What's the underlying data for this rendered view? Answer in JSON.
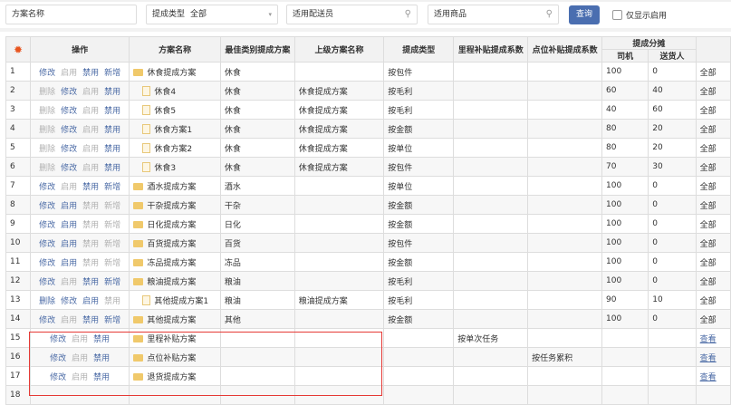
{
  "filters": {
    "name_placeholder": "方案名称",
    "type_label": "提成类型",
    "type_value": "全部",
    "courier_placeholder": "适用配送员",
    "goods_placeholder": "适用商品",
    "query_button": "查询",
    "only_enabled_label": "仅显示启用",
    "only_enabled_checked": false
  },
  "colors": {
    "accent": "#4a6eb0",
    "link": "#4a6aa5",
    "disabled": "#b0b0b0",
    "highlight": "#e53935"
  },
  "table": {
    "headers": {
      "ops": "操作",
      "name": "方案名称",
      "category": "最佳类别提成方案",
      "parent": "上级方案名称",
      "type": "提成类型",
      "mileage": "里程补贴提成系数",
      "point": "点位补贴提成系数",
      "split": "提成分摊",
      "driver": "司机",
      "deliverer": "送货人",
      "settings_icon": "gear-icon"
    },
    "rows": [
      {
        "no": "1",
        "actions": [
          [
            "修改",
            1
          ],
          [
            "启用",
            0
          ],
          [
            "禁用",
            1
          ],
          [
            "新增",
            1
          ]
        ],
        "icon": "folder",
        "name": "休食提成方案",
        "category": "休食",
        "parent": "",
        "type": "按包件",
        "mileage": "",
        "point": "",
        "driver": "100",
        "deliverer": "0",
        "last": "全部"
      },
      {
        "no": "2",
        "actions": [
          [
            "删除",
            0
          ],
          [
            "修改",
            1
          ],
          [
            "启用",
            0
          ],
          [
            "禁用",
            1
          ]
        ],
        "icon": "file",
        "name": "休食4",
        "category": "休食",
        "parent": "休食提成方案",
        "type": "按毛利",
        "mileage": "",
        "point": "",
        "driver": "60",
        "deliverer": "40",
        "last": "全部"
      },
      {
        "no": "3",
        "actions": [
          [
            "删除",
            0
          ],
          [
            "修改",
            1
          ],
          [
            "启用",
            0
          ],
          [
            "禁用",
            1
          ]
        ],
        "icon": "file",
        "name": "休食5",
        "category": "休食",
        "parent": "休食提成方案",
        "type": "按毛利",
        "mileage": "",
        "point": "",
        "driver": "40",
        "deliverer": "60",
        "last": "全部"
      },
      {
        "no": "4",
        "actions": [
          [
            "删除",
            0
          ],
          [
            "修改",
            1
          ],
          [
            "启用",
            0
          ],
          [
            "禁用",
            1
          ]
        ],
        "icon": "file",
        "name": "休食方案1",
        "category": "休食",
        "parent": "休食提成方案",
        "type": "按金额",
        "mileage": "",
        "point": "",
        "driver": "80",
        "deliverer": "20",
        "last": "全部"
      },
      {
        "no": "5",
        "actions": [
          [
            "删除",
            0
          ],
          [
            "修改",
            1
          ],
          [
            "启用",
            0
          ],
          [
            "禁用",
            1
          ]
        ],
        "icon": "file",
        "name": "休食方案2",
        "category": "休食",
        "parent": "休食提成方案",
        "type": "按单位",
        "mileage": "",
        "point": "",
        "driver": "80",
        "deliverer": "20",
        "last": "全部"
      },
      {
        "no": "6",
        "actions": [
          [
            "删除",
            0
          ],
          [
            "修改",
            1
          ],
          [
            "启用",
            0
          ],
          [
            "禁用",
            1
          ]
        ],
        "icon": "file",
        "name": "休食3",
        "category": "休食",
        "parent": "休食提成方案",
        "type": "按包件",
        "mileage": "",
        "point": "",
        "driver": "70",
        "deliverer": "30",
        "last": "全部"
      },
      {
        "no": "7",
        "actions": [
          [
            "修改",
            1
          ],
          [
            "启用",
            0
          ],
          [
            "禁用",
            1
          ],
          [
            "新增",
            1
          ]
        ],
        "icon": "folder",
        "name": "酒水提成方案",
        "category": "酒水",
        "parent": "",
        "type": "按单位",
        "mileage": "",
        "point": "",
        "driver": "100",
        "deliverer": "0",
        "last": "全部"
      },
      {
        "no": "8",
        "actions": [
          [
            "修改",
            1
          ],
          [
            "启用",
            1
          ],
          [
            "禁用",
            0
          ],
          [
            "新增",
            0
          ]
        ],
        "icon": "folder",
        "name": "干杂提成方案",
        "category": "干杂",
        "parent": "",
        "type": "按金额",
        "mileage": "",
        "point": "",
        "driver": "100",
        "deliverer": "0",
        "last": "全部"
      },
      {
        "no": "9",
        "actions": [
          [
            "修改",
            1
          ],
          [
            "启用",
            1
          ],
          [
            "禁用",
            0
          ],
          [
            "新增",
            0
          ]
        ],
        "icon": "folder",
        "name": "日化提成方案",
        "category": "日化",
        "parent": "",
        "type": "按金额",
        "mileage": "",
        "point": "",
        "driver": "100",
        "deliverer": "0",
        "last": "全部"
      },
      {
        "no": "10",
        "actions": [
          [
            "修改",
            1
          ],
          [
            "启用",
            1
          ],
          [
            "禁用",
            0
          ],
          [
            "新增",
            0
          ]
        ],
        "icon": "folder",
        "name": "百货提成方案",
        "category": "百货",
        "parent": "",
        "type": "按包件",
        "mileage": "",
        "point": "",
        "driver": "100",
        "deliverer": "0",
        "last": "全部"
      },
      {
        "no": "11",
        "actions": [
          [
            "修改",
            1
          ],
          [
            "启用",
            1
          ],
          [
            "禁用",
            0
          ],
          [
            "新增",
            0
          ]
        ],
        "icon": "folder",
        "name": "冻品提成方案",
        "category": "冻品",
        "parent": "",
        "type": "按金额",
        "mileage": "",
        "point": "",
        "driver": "100",
        "deliverer": "0",
        "last": "全部"
      },
      {
        "no": "12",
        "actions": [
          [
            "修改",
            1
          ],
          [
            "启用",
            0
          ],
          [
            "禁用",
            1
          ],
          [
            "新增",
            1
          ]
        ],
        "icon": "folder",
        "name": "粮油提成方案",
        "category": "粮油",
        "parent": "",
        "type": "按毛利",
        "mileage": "",
        "point": "",
        "driver": "100",
        "deliverer": "0",
        "last": "全部"
      },
      {
        "no": "13",
        "actions": [
          [
            "删除",
            1
          ],
          [
            "修改",
            1
          ],
          [
            "启用",
            1
          ],
          [
            "禁用",
            0
          ]
        ],
        "icon": "file",
        "name": "其他提成方案1",
        "category": "粮油",
        "parent": "粮油提成方案",
        "type": "按毛利",
        "mileage": "",
        "point": "",
        "driver": "90",
        "deliverer": "10",
        "last": "全部"
      },
      {
        "no": "14",
        "actions": [
          [
            "修改",
            1
          ],
          [
            "启用",
            0
          ],
          [
            "禁用",
            1
          ],
          [
            "新增",
            1
          ]
        ],
        "icon": "folder",
        "name": "其他提成方案",
        "category": "其他",
        "parent": "",
        "type": "按金额",
        "mileage": "",
        "point": "",
        "driver": "100",
        "deliverer": "0",
        "last": "全部"
      },
      {
        "no": "15",
        "actions": [
          [
            "修改",
            1
          ],
          [
            "启用",
            0
          ],
          [
            "禁用",
            1
          ]
        ],
        "icon": "folder",
        "name": "里程补贴方案",
        "category": "",
        "parent": "",
        "type": "",
        "mileage": "按单次任务",
        "point": "",
        "driver": "",
        "deliverer": "",
        "last": "查看",
        "last_link": true
      },
      {
        "no": "16",
        "actions": [
          [
            "修改",
            1
          ],
          [
            "启用",
            0
          ],
          [
            "禁用",
            1
          ]
        ],
        "icon": "folder",
        "name": "点位补贴方案",
        "category": "",
        "parent": "",
        "type": "",
        "mileage": "",
        "point": "按任务累积",
        "driver": "",
        "deliverer": "",
        "last": "查看",
        "last_link": true
      },
      {
        "no": "17",
        "actions": [
          [
            "修改",
            1
          ],
          [
            "启用",
            0
          ],
          [
            "禁用",
            1
          ]
        ],
        "icon": "folder",
        "name": "退货提成方案",
        "category": "",
        "parent": "",
        "type": "",
        "mileage": "",
        "point": "",
        "driver": "",
        "deliverer": "",
        "last": "查看",
        "last_link": true
      },
      {
        "no": "18",
        "actions": [],
        "icon": "",
        "name": "",
        "category": "",
        "parent": "",
        "type": "",
        "mileage": "",
        "point": "",
        "driver": "",
        "deliverer": "",
        "last": ""
      }
    ]
  }
}
